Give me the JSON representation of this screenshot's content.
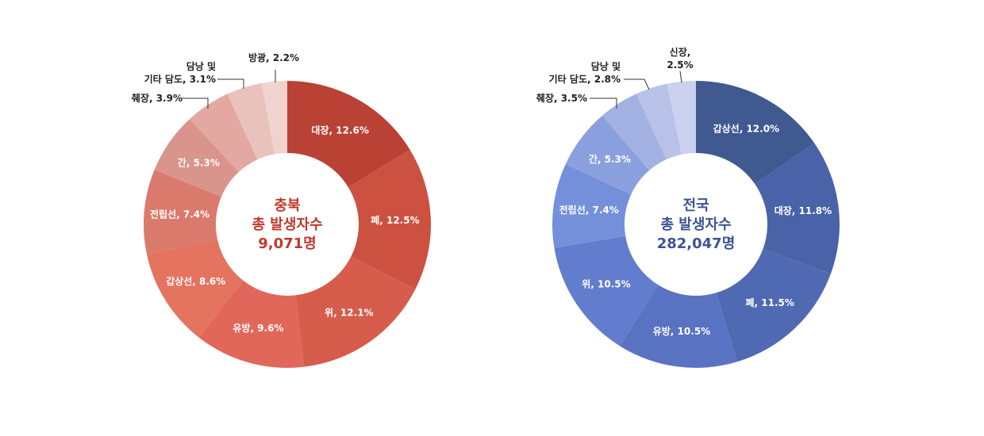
{
  "chart_data": [
    {
      "type": "pie",
      "center_lines": [
        "충북",
        "총 발생자수",
        "9,071명"
      ],
      "center_color": "#c0392b",
      "slices": [
        {
          "label": "대장, 12.6%",
          "value": 12.6,
          "color": "#b94235",
          "pos": "in"
        },
        {
          "label": "폐, 12.5%",
          "value": 12.5,
          "color": "#cd5141",
          "pos": "in"
        },
        {
          "label": "위, 12.1%",
          "value": 12.1,
          "color": "#d65c4b",
          "pos": "in"
        },
        {
          "label": "유방, 9.6%",
          "value": 9.6,
          "color": "#e0675a",
          "pos": "in"
        },
        {
          "label": "갑상선, 8.6%",
          "value": 8.6,
          "color": "#e4735f",
          "pos": "in"
        },
        {
          "label": "전립선, 7.4%",
          "value": 7.4,
          "color": "#d97a6c",
          "pos": "in"
        },
        {
          "label": "간, 5.3%",
          "value": 5.3,
          "color": "#d9948b",
          "pos": "in"
        },
        {
          "label": "췌장, 3.9%",
          "value": 3.9,
          "color": "#e2a8a1",
          "pos": "out"
        },
        {
          "label": "담낭 및\n기타 담도, 3.1%",
          "value": 3.1,
          "color": "#eac2bc",
          "pos": "out"
        },
        {
          "label": "방광, 2.2%",
          "value": 2.2,
          "color": "#efd3cf",
          "pos": "out"
        }
      ]
    },
    {
      "type": "pie",
      "center_lines": [
        "전국",
        "총 발생자수",
        "282,047명"
      ],
      "center_color": "#3e5391",
      "slices": [
        {
          "label": "갑상선, 12.0%",
          "value": 12.0,
          "color": "#415991",
          "pos": "in"
        },
        {
          "label": "대장, 11.8%",
          "value": 11.8,
          "color": "#4a62a8",
          "pos": "in"
        },
        {
          "label": "폐, 11.5%",
          "value": 11.5,
          "color": "#5069b3",
          "pos": "in"
        },
        {
          "label": "유방, 10.5%",
          "value": 10.5,
          "color": "#5a72c2",
          "pos": "in"
        },
        {
          "label": "위, 10.5%",
          "value": 10.5,
          "color": "#627dcd",
          "pos": "in"
        },
        {
          "label": "전립선, 7.4%",
          "value": 7.4,
          "color": "#7590da",
          "pos": "in"
        },
        {
          "label": "간, 5.3%",
          "value": 5.3,
          "color": "#8aa0de",
          "pos": "in"
        },
        {
          "label": "췌장, 3.5%",
          "value": 3.5,
          "color": "#a3b1e2",
          "pos": "out"
        },
        {
          "label": "담낭 및\n기타 담도, 2.8%",
          "value": 2.8,
          "color": "#b8c2e8",
          "pos": "out"
        },
        {
          "label": "신장,\n2.5%",
          "value": 2.5,
          "color": "#cbd0ee",
          "pos": "out"
        }
      ]
    }
  ]
}
